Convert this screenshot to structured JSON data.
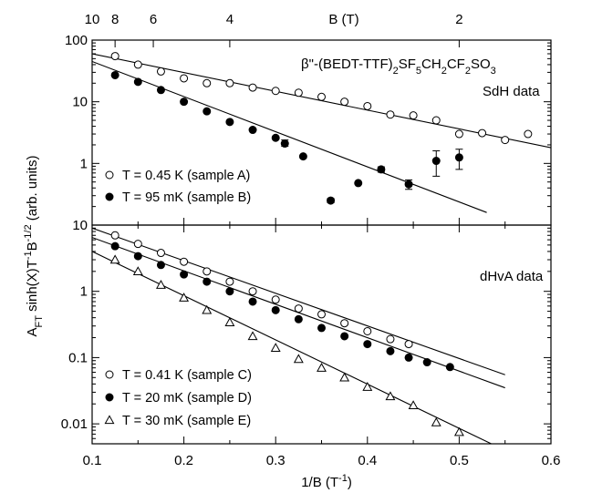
{
  "chart_data": [
    {
      "type": "scatter",
      "panel": "top",
      "xlim": [
        0.1,
        0.6
      ],
      "ylim": [
        0.1,
        100
      ],
      "yscale": "log",
      "y_tick_labels": [
        "100",
        "10",
        "1"
      ],
      "top_axis": {
        "label": "B (T)",
        "ticks": [
          {
            "b": 10,
            "label": "10"
          },
          {
            "b": 8,
            "label": "8"
          },
          {
            "b": 6,
            "label": "6"
          },
          {
            "b": 4,
            "label": "4"
          },
          {
            "b": 2,
            "label": "2"
          }
        ]
      },
      "annotations": [
        "SdH data"
      ],
      "formula": {
        "parts": [
          "β\"-(BEDT-TTF)",
          "2",
          "SF",
          "5",
          "CH",
          "2",
          "CF",
          "2",
          "SO",
          "3"
        ]
      },
      "series": [
        {
          "name": "T = 0.45 K (sample A)",
          "marker": "open-circle",
          "x": [
            0.125,
            0.15,
            0.175,
            0.2,
            0.225,
            0.25,
            0.275,
            0.3,
            0.325,
            0.35,
            0.375,
            0.4,
            0.425,
            0.45,
            0.475,
            0.5,
            0.525,
            0.55,
            0.575
          ],
          "y": [
            55,
            40,
            31,
            24,
            20,
            20,
            17,
            15,
            14,
            12,
            10,
            8.5,
            6.2,
            6.0,
            5.0,
            3.0,
            3.1,
            2.4,
            3.0
          ],
          "fit": {
            "x": [
              0.1,
              0.6
            ],
            "y": [
              60,
              1.8
            ]
          }
        },
        {
          "name": "T = 95 mK (sample B)",
          "marker": "filled-circle",
          "x": [
            0.125,
            0.15,
            0.175,
            0.2,
            0.225,
            0.25,
            0.275,
            0.3,
            0.31,
            0.33,
            0.36,
            0.39,
            0.415,
            0.445,
            0.475,
            0.5
          ],
          "y": [
            27,
            21,
            15.5,
            10,
            7,
            4.7,
            3.5,
            2.6,
            2.1,
            1.3,
            0.25,
            0.48,
            0.8,
            0.46,
            1.1,
            1.25
          ],
          "error_bars": [
            {
              "x": 0.31,
              "low": 1.9,
              "high": 2.4
            },
            {
              "x": 0.36,
              "low": 0.23,
              "high": 0.27
            },
            {
              "x": 0.415,
              "low": 0.72,
              "high": 0.88
            },
            {
              "x": 0.445,
              "low": 0.38,
              "high": 0.54
            },
            {
              "x": 0.475,
              "low": 0.62,
              "high": 1.6
            },
            {
              "x": 0.5,
              "low": 0.8,
              "high": 1.7
            }
          ],
          "fit": {
            "x": [
              0.1,
              0.53
            ],
            "y": [
              45,
              0.16
            ]
          }
        }
      ]
    },
    {
      "type": "scatter",
      "panel": "bottom",
      "xlim": [
        0.1,
        0.6
      ],
      "ylim": [
        0.005,
        10
      ],
      "yscale": "log",
      "xlabel": {
        "main": "1/B (T",
        "sup": "-1",
        "close": ")"
      },
      "x_tick_labels": [
        "0.1",
        "0.2",
        "0.3",
        "0.4",
        "0.5",
        "0.6"
      ],
      "y_tick_labels": [
        "10",
        "1",
        "0.1",
        "0.01"
      ],
      "annotations": [
        "dHvA data"
      ],
      "series": [
        {
          "name": "T = 0.41 K (sample C)",
          "marker": "open-circle",
          "x": [
            0.125,
            0.15,
            0.175,
            0.2,
            0.225,
            0.25,
            0.275,
            0.3,
            0.325,
            0.35,
            0.375,
            0.4,
            0.425,
            0.445
          ],
          "y": [
            7,
            5.2,
            3.8,
            2.8,
            2.0,
            1.4,
            1.0,
            0.75,
            0.55,
            0.45,
            0.33,
            0.25,
            0.19,
            0.16
          ],
          "fit": {
            "x": [
              0.1,
              0.55
            ],
            "y": [
              9,
              0.055
            ]
          }
        },
        {
          "name": "T = 20 mK (sample D)",
          "marker": "filled-circle",
          "x": [
            0.125,
            0.15,
            0.175,
            0.2,
            0.225,
            0.25,
            0.275,
            0.3,
            0.325,
            0.35,
            0.375,
            0.4,
            0.425,
            0.445,
            0.465,
            0.49
          ],
          "y": [
            4.8,
            3.4,
            2.5,
            1.8,
            1.4,
            1.0,
            0.7,
            0.52,
            0.38,
            0.28,
            0.21,
            0.16,
            0.125,
            0.1,
            0.085,
            0.072
          ],
          "fit": {
            "x": [
              0.1,
              0.55
            ],
            "y": [
              6.5,
              0.035
            ]
          }
        },
        {
          "name": "T = 30 mK (sample E)",
          "marker": "open-triangle",
          "x": [
            0.125,
            0.15,
            0.175,
            0.2,
            0.225,
            0.25,
            0.275,
            0.3,
            0.325,
            0.35,
            0.375,
            0.4,
            0.425,
            0.45,
            0.475,
            0.5
          ],
          "y": [
            3.0,
            2.0,
            1.25,
            0.8,
            0.52,
            0.34,
            0.21,
            0.14,
            0.095,
            0.07,
            0.05,
            0.036,
            0.026,
            0.019,
            0.0105,
            0.0075
          ],
          "fit": {
            "x": [
              0.1,
              0.535
            ],
            "y": [
              4,
              0.005
            ]
          }
        }
      ]
    }
  ],
  "ylabel": {
    "parts": [
      "A",
      "FT",
      " sinh(X)T",
      "-1",
      "B",
      "-1/2",
      " (arb. units)"
    ]
  }
}
